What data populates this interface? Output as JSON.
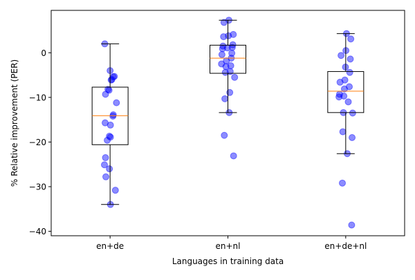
{
  "chart_data": {
    "type": "box",
    "xlabel": "Languages in training data",
    "ylabel": "% Relative improvement (PER)",
    "ylim": [
      -41,
      9.5
    ],
    "yticks": [
      0,
      -10,
      -20,
      -30,
      -40
    ],
    "grid": false,
    "legend": "none",
    "categories": [
      "en+de",
      "en+nl",
      "en+de+nl"
    ],
    "boxes": [
      {
        "category": "en+de",
        "whisker_high": 2.0,
        "q3": -7.7,
        "median": -14.1,
        "q1": -20.6,
        "whisker_low": -34.0
      },
      {
        "category": "en+nl",
        "whisker_high": 7.3,
        "q3": 1.7,
        "median": -1.2,
        "q1": -4.6,
        "whisker_low": -13.4
      },
      {
        "category": "en+de+nl",
        "whisker_high": 4.3,
        "q3": -4.2,
        "median": -8.6,
        "q1": -13.4,
        "whisker_low": -22.6
      }
    ],
    "points": [
      {
        "category": "en+de",
        "values": [
          2.0,
          -4.0,
          -5.3,
          -5.4,
          -6.0,
          -6.1,
          -8.2,
          -8.4,
          -9.3,
          -11.2,
          -13.9,
          -14.2,
          -15.7,
          -16.2,
          -18.7,
          -18.9,
          -19.6,
          -23.5,
          -25.1,
          -26.0,
          -27.8,
          -30.8,
          -34.0
        ],
        "offsets": [
          -0.15,
          0.0,
          0.12,
          0.09,
          0.05,
          0.03,
          -0.06,
          -0.03,
          -0.13,
          0.18,
          0.09,
          0.08,
          -0.14,
          0.01,
          -0.02,
          0.01,
          -0.08,
          -0.13,
          -0.16,
          -0.02,
          -0.12,
          0.15,
          0.01
        ]
      },
      {
        "category": "en+nl",
        "values": [
          7.3,
          6.8,
          4.1,
          3.8,
          3.6,
          1.8,
          1.5,
          1.2,
          1.1,
          0.9,
          -0.1,
          -0.4,
          -1.2,
          -1.8,
          -2.5,
          -2.9,
          -3.1,
          -4.2,
          -4.4,
          -5.5,
          -8.9,
          -10.3,
          -13.4,
          -18.5,
          -23.1
        ]
      },
      {
        "category": "en+de+nl",
        "values": [
          4.3,
          3.1,
          0.5,
          -0.6,
          -1.4,
          -3.2,
          -4.4,
          -6.1,
          -6.6,
          -7.6,
          -8.1,
          -9.3,
          -9.7,
          -9.9,
          -11.0,
          -13.4,
          -13.5,
          -17.7,
          -19.0,
          -22.6,
          -29.2,
          -38.6
        ]
      }
    ],
    "colors": {
      "point_fill": "#0000ff",
      "point_opacity": 0.45,
      "median": "#ff7f0e",
      "box_stroke": "#000000"
    }
  }
}
